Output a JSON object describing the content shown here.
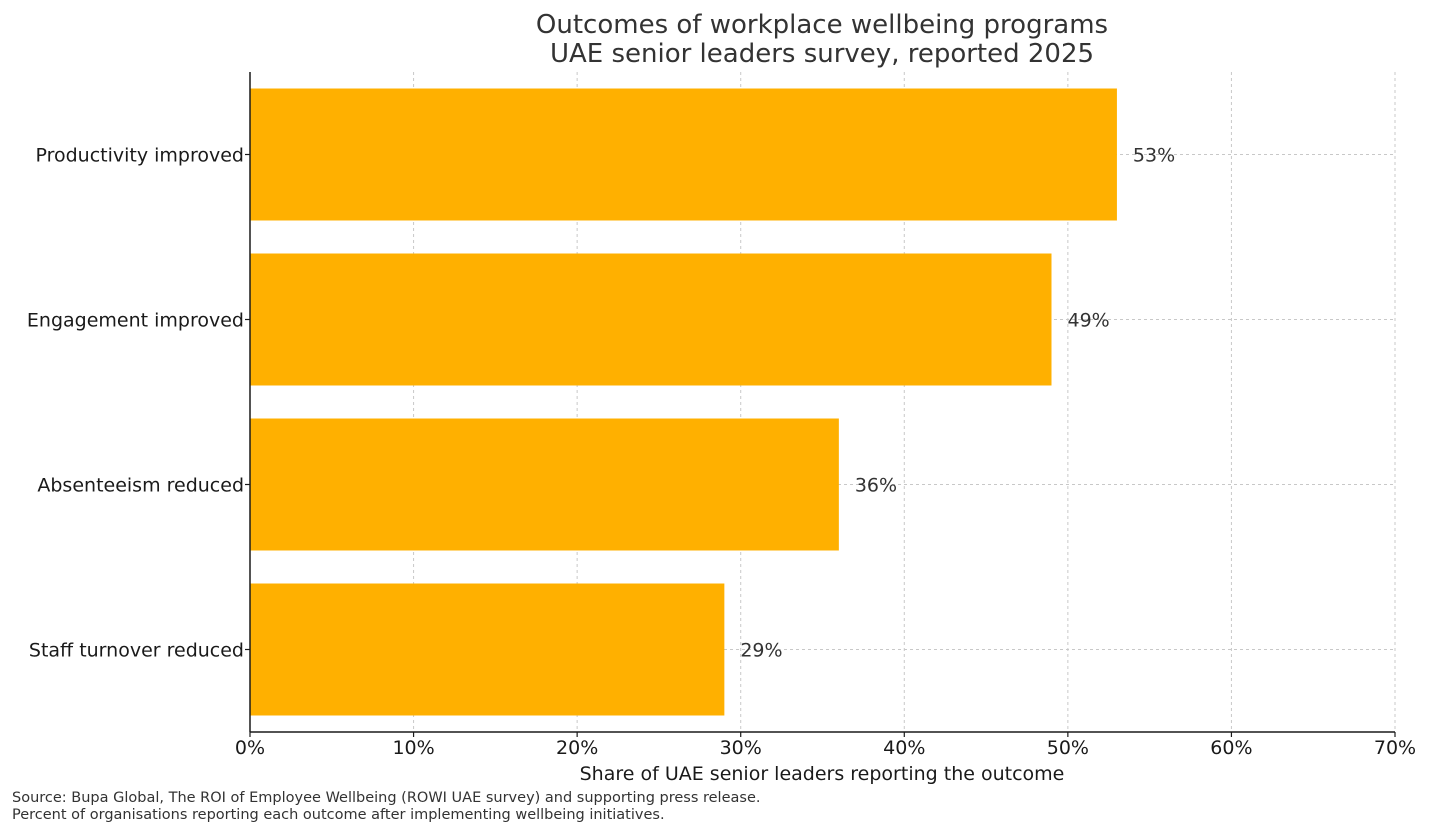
{
  "chart_data": {
    "type": "bar",
    "orientation": "horizontal",
    "title_lines": [
      "Outcomes of workplace wellbeing programs",
      "UAE senior leaders survey, reported 2025"
    ],
    "categories": [
      "Productivity improved",
      "Engagement improved",
      "Absenteeism reduced",
      "Staff turnover reduced"
    ],
    "values": [
      53,
      49,
      36,
      29
    ],
    "value_labels": [
      "53%",
      "49%",
      "36%",
      "29%"
    ],
    "xlabel": "Share of UAE senior leaders reporting the outcome",
    "ylabel": "",
    "xlim": [
      0,
      70
    ],
    "x_ticks": [
      0,
      10,
      20,
      30,
      40,
      50,
      60,
      70
    ],
    "x_tick_labels": [
      "0%",
      "10%",
      "20%",
      "30%",
      "40%",
      "50%",
      "60%",
      "70%"
    ],
    "grid": true,
    "legend": "none",
    "bar_color": "#FFB000",
    "source_lines": [
      "Source: Bupa Global, The ROI of Employee Wellbeing (ROWI UAE survey) and supporting press release.",
      "Percent of organisations reporting each outcome after implementing wellbeing initiatives."
    ]
  }
}
